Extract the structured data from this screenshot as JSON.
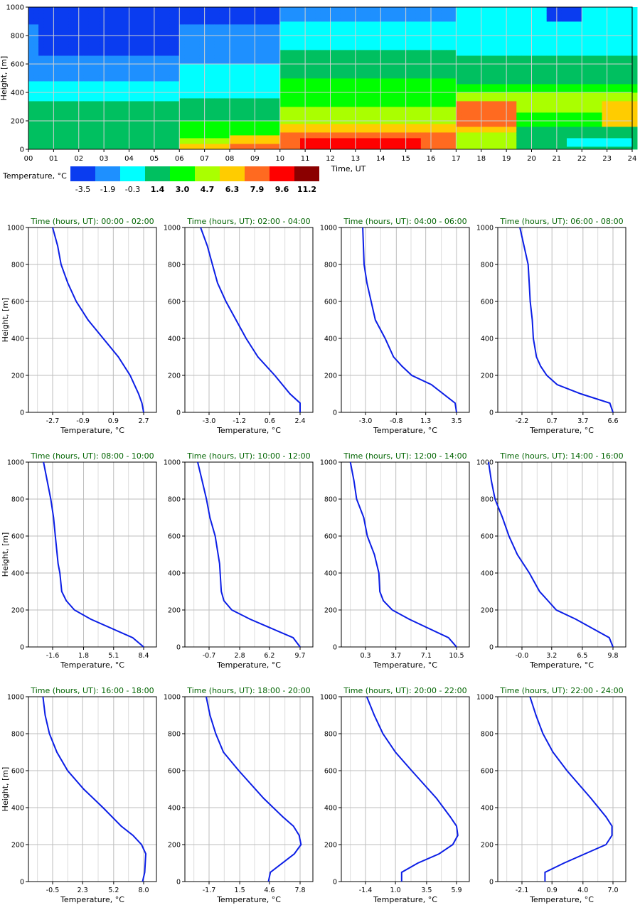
{
  "colors": {
    "profile_line": "#0b1ee6",
    "title_green": "#006400",
    "grid": "#bdbdbd",
    "axis": "#000000"
  },
  "chart_data": [
    {
      "type": "heatmap",
      "ylabel": "Height, [m]",
      "xlabel": "Time, UT",
      "xlim": [
        0,
        24
      ],
      "ylim": [
        0,
        1000
      ],
      "x_tick_labels": [
        "00",
        "01",
        "02",
        "03",
        "04",
        "05",
        "06",
        "07",
        "08",
        "09",
        "10",
        "11",
        "12",
        "13",
        "14",
        "15",
        "16",
        "17",
        "18",
        "19",
        "20",
        "21",
        "22",
        "23",
        "24"
      ],
      "y_ticks": [
        0,
        200,
        400,
        600,
        800,
        1000
      ],
      "legend": {
        "title": "Temperature, °C",
        "labels": [
          "-3.5",
          "-1.9",
          "-0.3",
          "1.4",
          "3.0",
          "4.7",
          "6.3",
          "7.9",
          "9.6",
          "11.2"
        ],
        "colors": [
          "#0a3cf0",
          "#1e90ff",
          "#00ffff",
          "#00c060",
          "#00ff00",
          "#aaff00",
          "#ffcc00",
          "#ff6a20",
          "#ff0000",
          "#8b0000"
        ]
      },
      "class_boundaries_time_height": [
        {
          "t": [
            0,
            1,
            2,
            3,
            4,
            5,
            6,
            7,
            8,
            9,
            10,
            11,
            12,
            13,
            14,
            15,
            16,
            17,
            18,
            19,
            20,
            21,
            22,
            23,
            24
          ],
          "heights": {
            "top_of_class_0": [
              0,
              0,
              0,
              0,
              0,
              0,
              0,
              0,
              0,
              0,
              0,
              0,
              0,
              0,
              0,
              0,
              0,
              0,
              0,
              0,
              0,
              0,
              0,
              0,
              0
            ],
            "top_of_class_1": [
              0,
              0,
              0,
              0,
              0,
              0,
              0,
              0,
              0,
              0,
              0,
              0,
              0,
              0,
              0,
              0,
              0,
              0,
              0,
              0,
              0,
              0,
              0,
              0,
              0
            ],
            "top_of_class_2": [
              0,
              0,
              0,
              0,
              0,
              0,
              0,
              0,
              0,
              0,
              0,
              0,
              0,
              0,
              0,
              0,
              0,
              0,
              0,
              0,
              0,
              0,
              0,
              0,
              0
            ],
            "top_of_class_3": [
              240,
              200,
              140,
              100,
              90,
              80,
              40,
              0,
              0,
              0,
              0,
              0,
              0,
              0,
              0,
              0,
              0,
              0,
              0,
              0,
              110,
              130,
              140,
              150,
              150
            ],
            "top_of_class_4": [
              250,
              250,
              200,
              150,
              120,
              100,
              60,
              30,
              30,
              30,
              20,
              20,
              20,
              20,
              20,
              20,
              20,
              20,
              20,
              20,
              140,
              160,
              180,
              200,
              200
            ],
            "top_of_class_5": [
              250,
              250,
              200,
              150,
              120,
              100,
              80,
              60,
              60,
              60,
              60,
              60,
              60,
              60,
              60,
              60,
              60,
              60,
              60,
              80,
              160,
              190,
              200,
              210,
              210
            ],
            "top_of_class_6": [
              250,
              250,
              200,
              150,
              120,
              100,
              80,
              80,
              90,
              100,
              110,
              120,
              130,
              140,
              150,
              150,
              140,
              280,
              300,
              300,
              350,
              350,
              340,
              330,
              330
            ],
            "top_of_class_7": [
              250,
              250,
              200,
              150,
              120,
              100,
              80,
              80,
              90,
              100,
              110,
              120,
              130,
              140,
              150,
              150,
              140,
              200,
              280,
              270,
              280,
              270,
              260,
              240,
              240
            ],
            "top_of_class_8": [
              250,
              250,
              200,
              150,
              120,
              100,
              80,
              80,
              90,
              100,
              100,
              110,
              110,
              110,
              100,
              90,
              80,
              0,
              0,
              0,
              0,
              0,
              0,
              0,
              0
            ]
          }
        }
      ]
    },
    {
      "type": "line",
      "title": "Time (hours, UT): 00:00 - 02:00",
      "xlabel": "Temperature, °C",
      "ylabel": "Height, [m]",
      "x_tick_labels": [
        "-2.7",
        "-0.9",
        "0.9",
        "2.7"
      ],
      "ylim": [
        0,
        1000
      ],
      "y_ticks": [
        0,
        200,
        400,
        600,
        800,
        1000
      ],
      "series": [
        {
          "x": [
            2.7,
            2.6,
            2.4,
            1.9,
            1.2,
            0.3,
            -0.6,
            -1.3,
            -1.8,
            -2.2,
            -2.4,
            -2.7
          ],
          "y": [
            0,
            50,
            100,
            200,
            300,
            400,
            500,
            600,
            700,
            800,
            900,
            1000
          ]
        }
      ]
    },
    {
      "type": "line",
      "title": "Time (hours, UT): 02:00 - 04:00",
      "xlabel": "Temperature, °C",
      "ylabel": "",
      "x_tick_labels": [
        "-3.0",
        "-1.2",
        "0.6",
        "2.4"
      ],
      "ylim": [
        0,
        1000
      ],
      "y_ticks": [
        0,
        200,
        400,
        600,
        800,
        1000
      ],
      "series": [
        {
          "x": [
            2.4,
            2.4,
            1.8,
            0.9,
            -0.1,
            -0.8,
            -1.4,
            -2.0,
            -2.5,
            -2.8,
            -3.1,
            -3.5
          ],
          "y": [
            0,
            50,
            100,
            200,
            300,
            400,
            500,
            600,
            700,
            800,
            900,
            1000
          ]
        }
      ]
    },
    {
      "type": "line",
      "title": "Time (hours, UT): 04:00 - 06:00",
      "xlabel": "Temperature, °C",
      "ylabel": "",
      "x_tick_labels": [
        "-3.0",
        "-0.8",
        "1.3",
        "3.5"
      ],
      "ylim": [
        0,
        1000
      ],
      "y_ticks": [
        0,
        200,
        400,
        600,
        800,
        1000
      ],
      "series": [
        {
          "x": [
            3.5,
            3.4,
            1.7,
            0.3,
            -0.4,
            -1.0,
            -1.6,
            -2.3,
            -2.6,
            -2.9,
            -3.1,
            -3.2
          ],
          "y": [
            0,
            50,
            150,
            200,
            250,
            300,
            400,
            500,
            600,
            700,
            800,
            1000
          ]
        }
      ]
    },
    {
      "type": "line",
      "title": "Time (hours, UT): 06:00 - 08:00",
      "xlabel": "Temperature, °C",
      "ylabel": "",
      "x_tick_labels": [
        "-2.2",
        "0.7",
        "3.7",
        "6.6"
      ],
      "ylim": [
        0,
        1000
      ],
      "y_ticks": [
        0,
        200,
        400,
        600,
        800,
        1000
      ],
      "series": [
        {
          "x": [
            6.6,
            6.3,
            3.5,
            1.2,
            0.2,
            -0.4,
            -0.8,
            -1.1,
            -1.2,
            -1.4,
            -1.5,
            -1.6,
            -2.0,
            -2.4
          ],
          "y": [
            0,
            50,
            100,
            150,
            200,
            250,
            300,
            400,
            500,
            600,
            700,
            800,
            900,
            1000
          ]
        }
      ]
    },
    {
      "type": "line",
      "title": "Time (hours, UT): 08:00 - 10:00",
      "xlabel": "Temperature, °C",
      "ylabel": "Height, [m]",
      "x_tick_labels": [
        "-1.6",
        "1.8",
        "5.1",
        "8.4"
      ],
      "ylim": [
        0,
        1000
      ],
      "y_ticks": [
        0,
        200,
        400,
        600,
        800,
        1000
      ],
      "series": [
        {
          "x": [
            8.4,
            7.2,
            2.6,
            0.8,
            -0.1,
            -0.6,
            -0.8,
            -1.0,
            -1.3,
            -1.5,
            -1.8,
            -2.2,
            -2.6
          ],
          "y": [
            0,
            50,
            150,
            200,
            250,
            300,
            400,
            450,
            600,
            700,
            800,
            900,
            1000
          ]
        }
      ]
    },
    {
      "type": "line",
      "title": "Time (hours, UT): 10:00 - 12:00",
      "xlabel": "Temperature, °C",
      "ylabel": "",
      "x_tick_labels": [
        "-0.7",
        "2.8",
        "6.2",
        "9.7"
      ],
      "ylim": [
        0,
        1000
      ],
      "y_ticks": [
        0,
        200,
        400,
        600,
        800,
        1000
      ],
      "series": [
        {
          "x": [
            9.7,
            8.9,
            4.0,
            1.9,
            1.0,
            0.7,
            0.5,
            0.0,
            -0.6,
            -1.0,
            -1.5,
            -2.0
          ],
          "y": [
            0,
            50,
            150,
            200,
            250,
            300,
            450,
            600,
            700,
            800,
            900,
            1000
          ]
        }
      ]
    },
    {
      "type": "line",
      "title": "Time (hours, UT): 12:00 - 14:00",
      "xlabel": "Temperature, °C",
      "ylabel": "",
      "x_tick_labels": [
        "0.3",
        "3.7",
        "7.1",
        "10.5"
      ],
      "ylim": [
        0,
        1000
      ],
      "y_ticks": [
        0,
        200,
        400,
        600,
        800,
        1000
      ],
      "series": [
        {
          "x": [
            10.5,
            9.6,
            5.2,
            3.3,
            2.3,
            1.9,
            1.8,
            1.3,
            0.5,
            0.1,
            -0.7,
            -1.0,
            -1.4
          ],
          "y": [
            0,
            50,
            150,
            200,
            250,
            300,
            400,
            500,
            600,
            700,
            800,
            900,
            1000
          ]
        }
      ]
    },
    {
      "type": "line",
      "title": "Time (hours, UT): 14:00 - 16:00",
      "xlabel": "Temperature, °C",
      "ylabel": "",
      "x_tick_labels": [
        "-0.0",
        "3.2",
        "6.5",
        "9.8"
      ],
      "ylim": [
        0,
        1000
      ],
      "y_ticks": [
        0,
        200,
        400,
        600,
        800,
        1000
      ],
      "series": [
        {
          "x": [
            9.8,
            9.4,
            5.8,
            3.7,
            2.8,
            1.9,
            0.8,
            -0.5,
            -1.4,
            -2.1,
            -2.9,
            -3.3,
            -3.6
          ],
          "y": [
            0,
            50,
            150,
            200,
            250,
            300,
            400,
            500,
            600,
            700,
            800,
            900,
            1000
          ]
        }
      ]
    },
    {
      "type": "line",
      "title": "Time (hours, UT): 16:00 - 18:00",
      "xlabel": "Temperature, °C",
      "ylabel": "Height, [m]",
      "x_tick_labels": [
        "-0.5",
        "2.3",
        "5.2",
        "8.0"
      ],
      "ylim": [
        0,
        1000
      ],
      "y_ticks": [
        0,
        200,
        400,
        600,
        800,
        1000
      ],
      "series": [
        {
          "x": [
            7.9,
            8.1,
            8.2,
            7.8,
            7.0,
            5.9,
            4.2,
            2.4,
            0.9,
            -0.1,
            -0.8,
            -1.2,
            -1.4
          ],
          "y": [
            0,
            50,
            150,
            200,
            250,
            300,
            400,
            500,
            600,
            700,
            800,
            900,
            1000
          ]
        }
      ]
    },
    {
      "type": "line",
      "title": "Time (hours, UT): 18:00 - 20:00",
      "xlabel": "Temperature, °C",
      "ylabel": "",
      "x_tick_labels": [
        "-1.7",
        "1.5",
        "4.6",
        "7.8"
      ],
      "ylim": [
        0,
        1000
      ],
      "y_ticks": [
        0,
        200,
        400,
        600,
        800,
        1000
      ],
      "series": [
        {
          "x": [
            4.5,
            4.7,
            7.2,
            7.9,
            7.7,
            7.1,
            6.0,
            4.0,
            1.4,
            -0.2,
            -1.0,
            -1.6,
            -2.0
          ],
          "y": [
            0,
            50,
            150,
            200,
            250,
            300,
            350,
            450,
            600,
            700,
            800,
            900,
            1000
          ]
        }
      ]
    },
    {
      "type": "line",
      "title": "Time (hours, UT): 20:00 - 22:00",
      "xlabel": "Temperature, °C",
      "ylabel": "",
      "x_tick_labels": [
        "-1.4",
        "1.0",
        "3.5",
        "5.9"
      ],
      "ylim": [
        0,
        1000
      ],
      "y_ticks": [
        0,
        200,
        400,
        600,
        800,
        1000
      ],
      "series": [
        {
          "x": [
            1.5,
            1.5,
            2.8,
            4.5,
            5.6,
            6.0,
            5.9,
            5.4,
            4.3,
            2.3,
            1.0,
            0.0,
            -0.7,
            -1.3
          ],
          "y": [
            0,
            50,
            100,
            150,
            200,
            250,
            300,
            350,
            450,
            600,
            700,
            800,
            900,
            1000
          ]
        }
      ]
    },
    {
      "type": "line",
      "title": "Time (hours, UT): 22:00 - 24:00",
      "xlabel": "Temperature, °C",
      "ylabel": "",
      "x_tick_labels": [
        "-2.1",
        "0.9",
        "4.0",
        "7.0"
      ],
      "ylim": [
        0,
        1000
      ],
      "y_ticks": [
        0,
        200,
        400,
        600,
        800,
        1000
      ],
      "series": [
        {
          "x": [
            0.2,
            0.2,
            2.1,
            4.2,
            6.3,
            6.9,
            6.9,
            6.3,
            4.8,
            2.4,
            1.0,
            0.0,
            -0.7,
            -1.3
          ],
          "y": [
            0,
            50,
            100,
            150,
            200,
            250,
            300,
            350,
            450,
            600,
            700,
            800,
            900,
            1000
          ]
        }
      ]
    }
  ]
}
